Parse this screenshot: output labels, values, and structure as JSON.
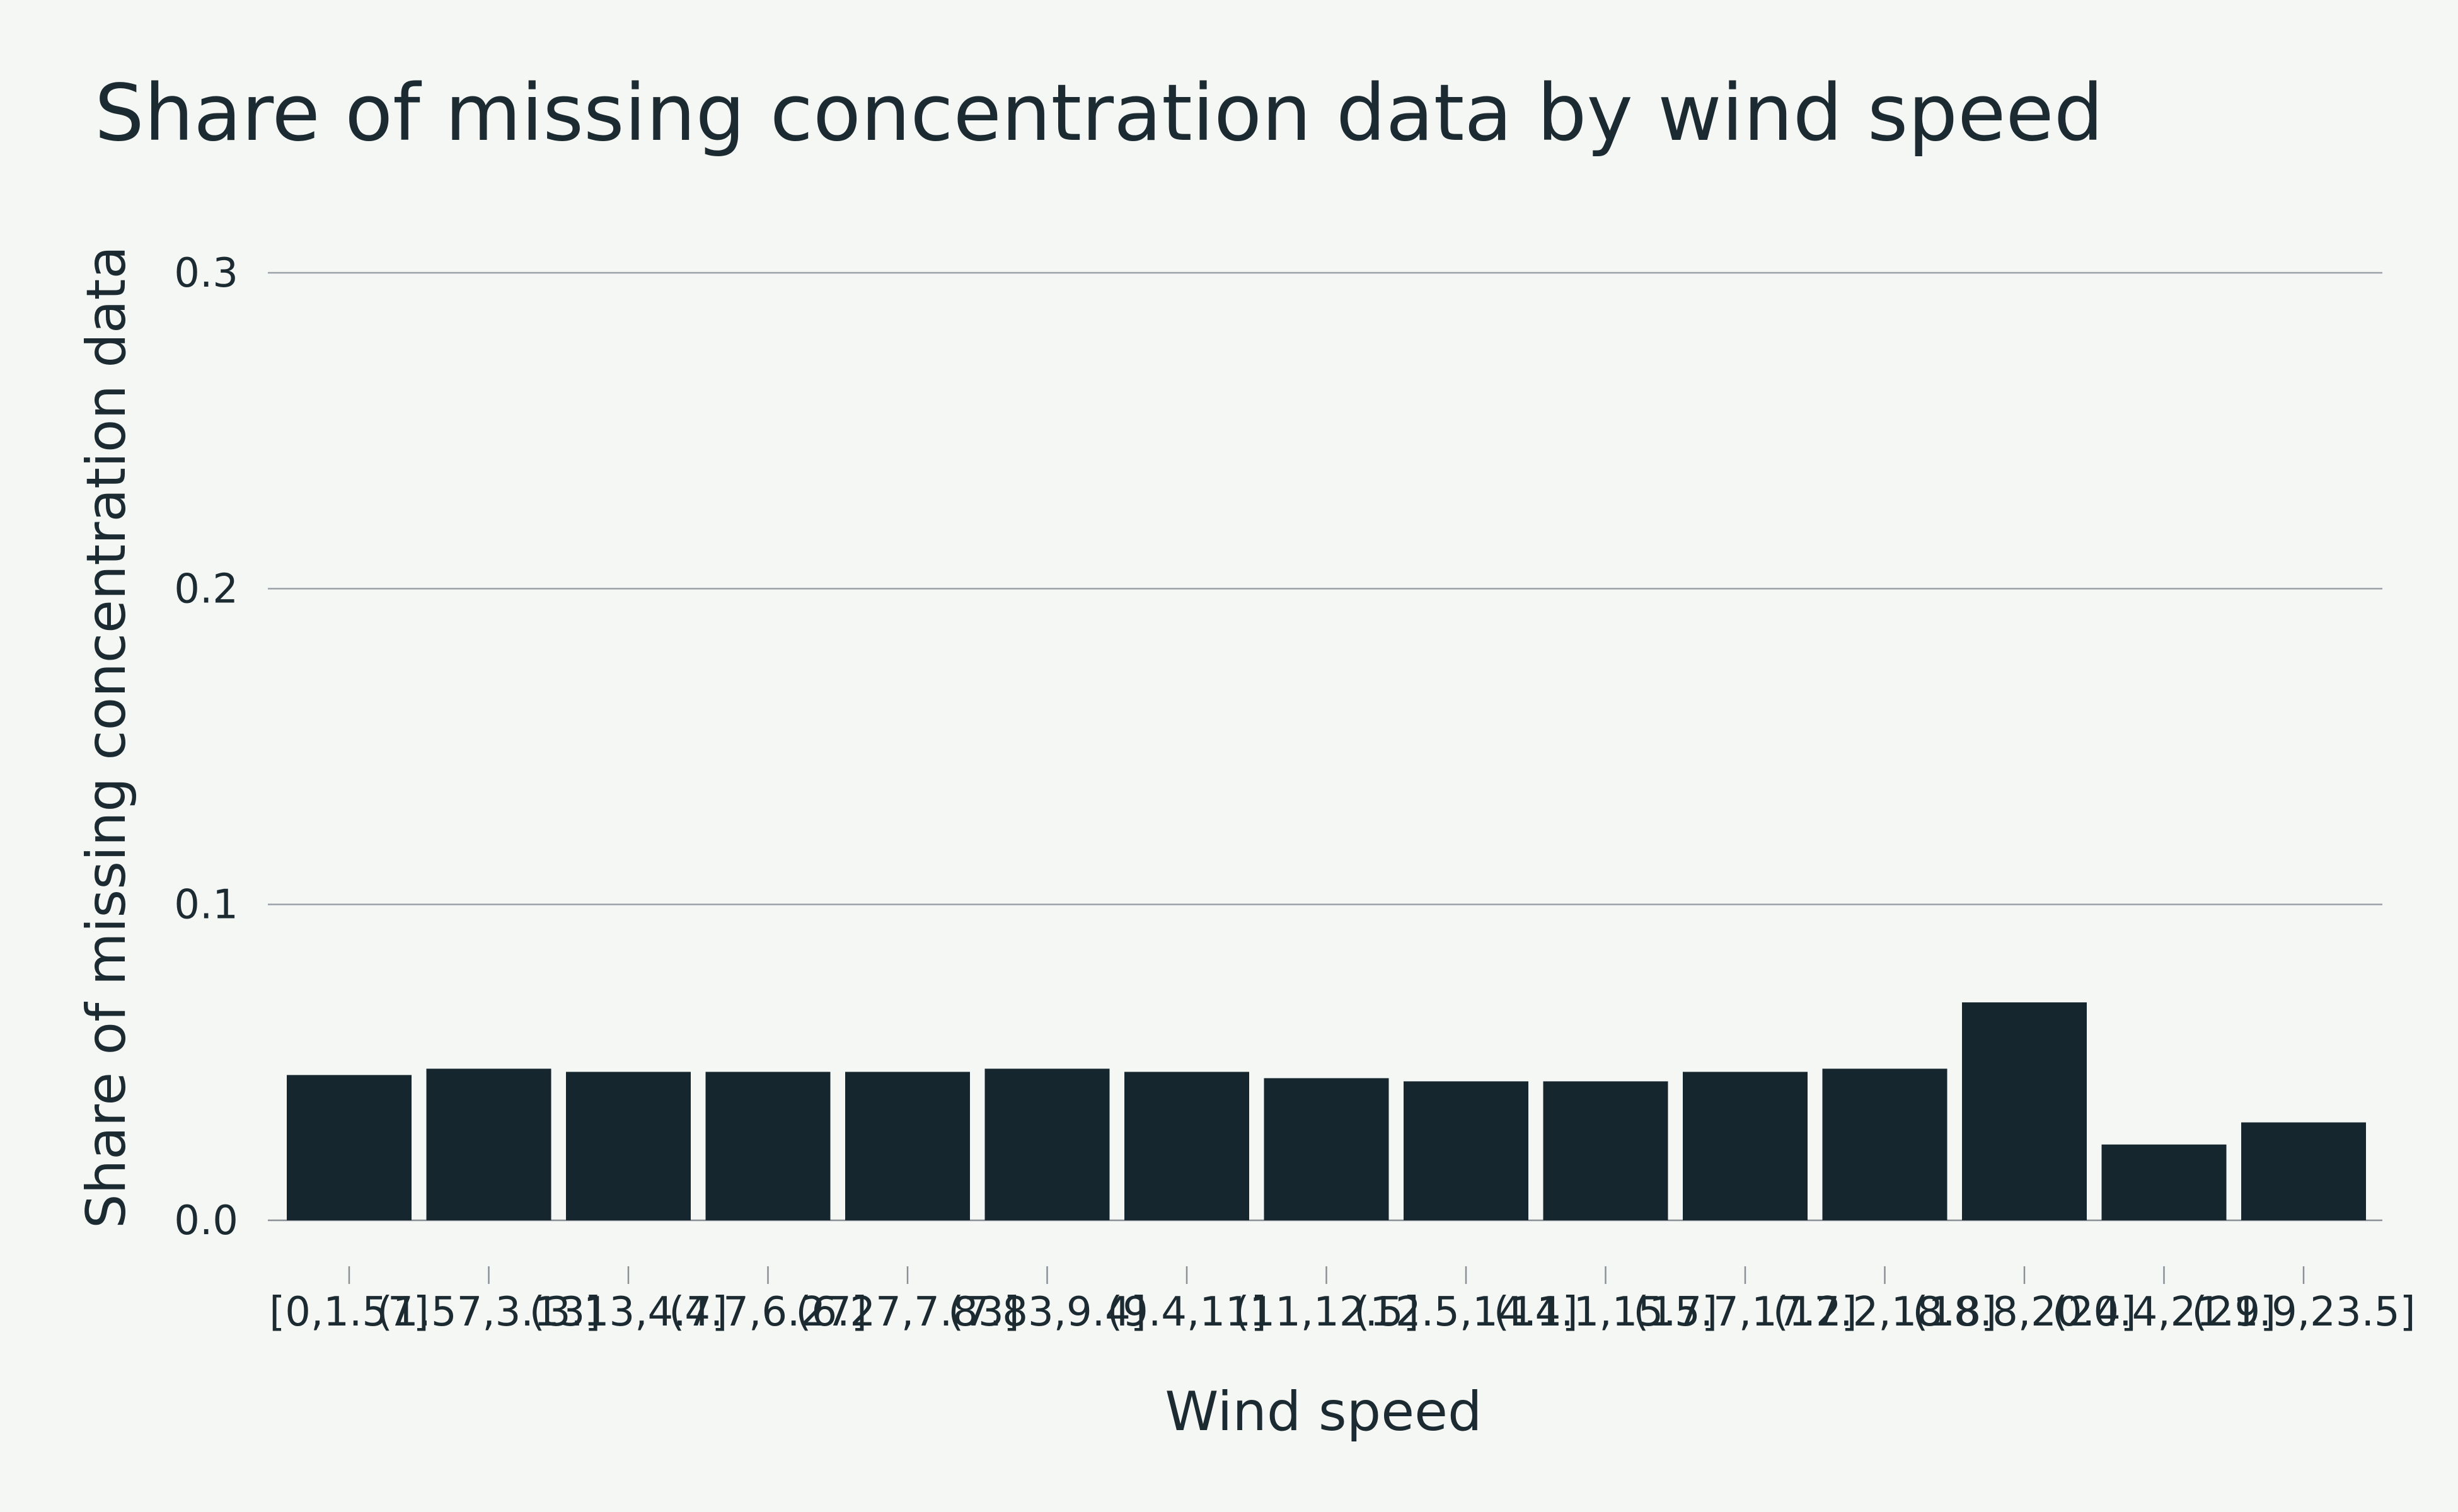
{
  "chart_data": {
    "type": "bar",
    "title": "Share of missing concentration data by wind speed",
    "xlabel": "Wind speed",
    "ylabel": "Share of missing concentration data",
    "ylim": [
      0,
      0.3
    ],
    "yticks": [
      0.0,
      0.1,
      0.2,
      0.3
    ],
    "ytick_labels": [
      "0.0",
      "0.1",
      "0.2",
      "0.3"
    ],
    "grid": true,
    "bar_color": "#15262e",
    "categories": [
      "[0,1.57]",
      "(1.57,3.13]",
      "(3.13,4.7]",
      "(4.7,6.27]",
      "(6.27,7.83]",
      "(7.83,9.4]",
      "(9.4,11]",
      "(11,12.5]",
      "(12.5,14.1]",
      "(14.1,15.7]",
      "(15.7,17.2]",
      "(17.2,18.8]",
      "(18.8,20.4]",
      "(20.4,21.9]",
      "(21.9,23.5]"
    ],
    "values": [
      0.046,
      0.048,
      0.047,
      0.047,
      0.047,
      0.048,
      0.047,
      0.045,
      0.044,
      0.044,
      0.047,
      0.048,
      0.069,
      0.024,
      0.031
    ]
  }
}
